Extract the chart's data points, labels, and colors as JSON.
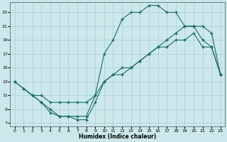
{
  "xlabel": "Humidex (Indice chaleur)",
  "bg_color": "#cce8ea",
  "grid_color": "#aacdd2",
  "line_color": "#1a6b6b",
  "xlim": [
    -0.5,
    23.5
  ],
  "ylim": [
    6.5,
    24.5
  ],
  "xticks": [
    0,
    1,
    2,
    3,
    4,
    5,
    6,
    7,
    8,
    9,
    10,
    11,
    12,
    13,
    14,
    15,
    16,
    17,
    18,
    19,
    20,
    21,
    22,
    23
  ],
  "yticks": [
    7,
    9,
    11,
    13,
    15,
    17,
    19,
    21,
    23
  ],
  "line1_x": [
    0,
    1,
    2,
    3,
    4,
    5,
    6,
    7,
    8,
    9,
    10,
    11,
    12,
    13,
    14,
    15,
    16,
    17,
    18,
    19,
    20,
    21,
    22,
    23
  ],
  "line1_y": [
    13,
    12,
    11,
    11,
    10,
    10,
    10,
    10,
    10,
    11,
    13,
    14,
    14,
    15,
    16,
    17,
    18,
    19,
    20,
    21,
    21,
    21,
    20,
    14
  ],
  "line2_x": [
    0,
    2,
    3,
    4,
    5,
    6,
    7,
    8,
    9,
    10,
    11,
    12,
    13,
    14,
    15,
    16,
    17,
    18,
    19,
    20,
    21,
    22,
    23
  ],
  "line2_y": [
    13,
    11,
    10,
    9,
    8,
    8,
    8,
    8,
    11,
    17,
    19,
    22,
    23,
    23,
    24,
    24,
    23,
    23,
    21,
    21,
    19,
    18,
    14
  ],
  "line3_x": [
    1,
    2,
    3,
    4,
    5,
    6,
    7,
    8,
    9,
    10,
    11,
    12,
    13,
    14,
    15,
    16,
    17,
    18,
    19,
    20,
    21,
    22,
    23
  ],
  "line3_y": [
    12,
    11,
    10,
    8.5,
    8,
    8,
    7.5,
    7.5,
    10,
    13,
    14,
    15,
    15,
    16,
    17,
    18,
    18,
    19,
    19,
    20,
    18,
    18,
    14
  ]
}
